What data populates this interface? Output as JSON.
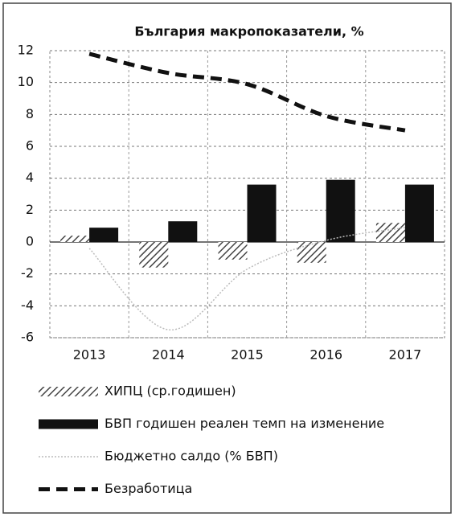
{
  "chart_data": {
    "type": "bar_line",
    "title": "България макропоказатели, %",
    "categories": [
      "2013",
      "2014",
      "2015",
      "2016",
      "2017"
    ],
    "ylim": [
      -6,
      12
    ],
    "yticks": [
      -6,
      -4,
      -2,
      0,
      2,
      4,
      6,
      8,
      10,
      12
    ],
    "grid": true,
    "legend": "bottom",
    "series": [
      {
        "name": "ХИПЦ (ср.годишен)",
        "kind": "bar",
        "color": "#555555",
        "pattern": "hatch",
        "values": [
          0.4,
          -1.6,
          -1.1,
          -1.3,
          1.2
        ]
      },
      {
        "name": "БВП годишен реален темп на изменение",
        "kind": "bar",
        "color": "#111111",
        "values": [
          0.9,
          1.3,
          3.6,
          3.9,
          3.6
        ]
      },
      {
        "name": "Бюджетно салдо (% БВП)",
        "kind": "line",
        "color": "#bbbbbb",
        "dash": "dotted",
        "values": [
          -0.4,
          -5.5,
          -1.7,
          0.1,
          0.9
        ]
      },
      {
        "name": "Безработица",
        "kind": "line",
        "color": "#111111",
        "dash": "dashed",
        "values": [
          11.8,
          10.6,
          9.9,
          7.9,
          7.0
        ]
      }
    ]
  }
}
